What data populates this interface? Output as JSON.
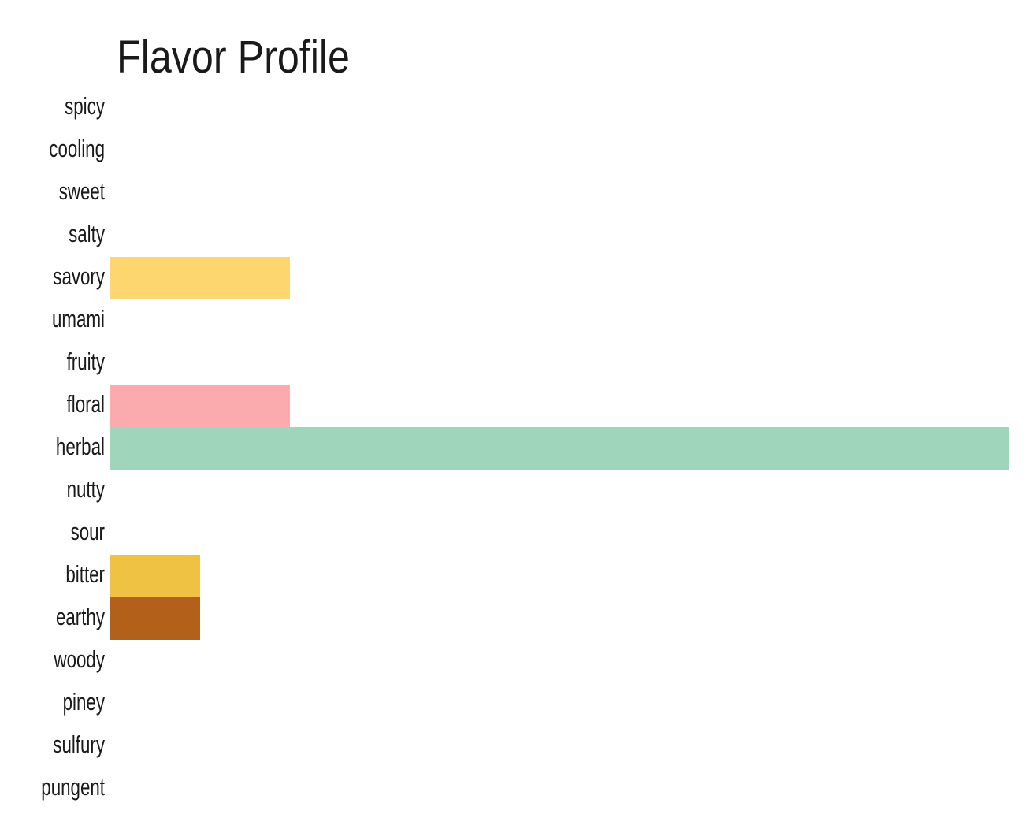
{
  "chart_data": {
    "type": "bar",
    "orientation": "horizontal",
    "title": "Flavor Profile",
    "categories": [
      "spicy",
      "cooling",
      "sweet",
      "salty",
      "savory",
      "umami",
      "fruity",
      "floral",
      "herbal",
      "nutty",
      "sour",
      "bitter",
      "earthy",
      "woody",
      "piney",
      "sulfury",
      "pungent"
    ],
    "values": [
      0,
      0,
      0,
      0,
      2,
      0,
      0,
      2,
      10,
      0,
      0,
      1,
      1,
      0,
      0,
      0,
      0
    ],
    "colors": [
      null,
      null,
      null,
      null,
      "#fed66f",
      null,
      null,
      "#fbaaad",
      "#9fd6bb",
      null,
      null,
      "#f0c244",
      "#b2601a",
      null,
      null,
      null,
      null
    ],
    "xlim": [
      0,
      10
    ]
  }
}
